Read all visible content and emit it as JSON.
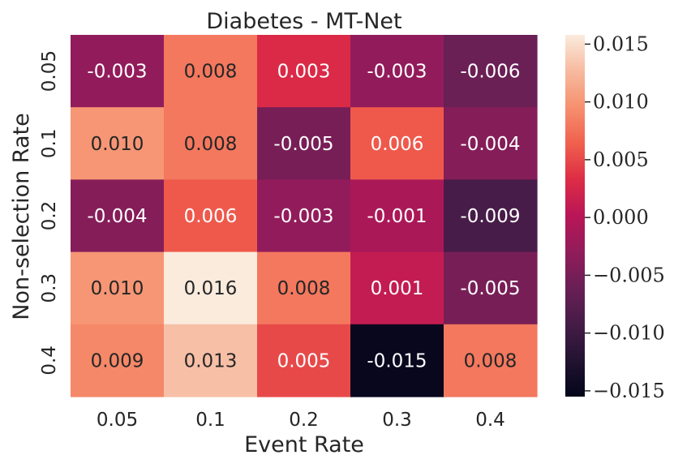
{
  "chart_data": {
    "type": "heatmap",
    "title": "Diabetes - MT-Net",
    "xlabel": "Event Rate",
    "ylabel": "Non-selection Rate",
    "x_categories": [
      "0.05",
      "0.1",
      "0.2",
      "0.3",
      "0.4"
    ],
    "y_categories": [
      "0.05",
      "0.1",
      "0.2",
      "0.3",
      "0.4"
    ],
    "values": [
      [
        -0.003,
        0.008,
        0.003,
        -0.003,
        -0.006
      ],
      [
        0.01,
        0.008,
        -0.005,
        0.006,
        -0.004
      ],
      [
        -0.004,
        0.006,
        -0.003,
        -0.001,
        -0.009
      ],
      [
        0.01,
        0.016,
        0.008,
        0.001,
        -0.005
      ],
      [
        0.009,
        0.013,
        0.005,
        -0.015,
        0.008
      ]
    ],
    "cell_labels": [
      [
        "-0.003",
        "0.008",
        "0.003",
        "-0.003",
        "-0.006"
      ],
      [
        "0.010",
        "0.008",
        "-0.005",
        "0.006",
        "-0.004"
      ],
      [
        "-0.004",
        "0.006",
        "-0.003",
        "-0.001",
        "-0.009"
      ],
      [
        "0.010",
        "0.016",
        "0.008",
        "0.001",
        "-0.005"
      ],
      [
        "0.009",
        "0.013",
        "0.005",
        "-0.015",
        "0.008"
      ]
    ],
    "colormap": "rocket",
    "colorbar": {
      "range": [
        -0.0155,
        0.0158
      ],
      "ticks": [
        0.015,
        0.01,
        0.005,
        0.0,
        -0.005,
        -0.01,
        -0.015
      ],
      "tick_labels": [
        "0.015",
        "0.010",
        "0.005",
        "0.000",
        "−0.005",
        "−0.010",
        "−0.015"
      ]
    },
    "text_colors": {
      "dark": "#262626",
      "light": "#ffffff"
    }
  }
}
